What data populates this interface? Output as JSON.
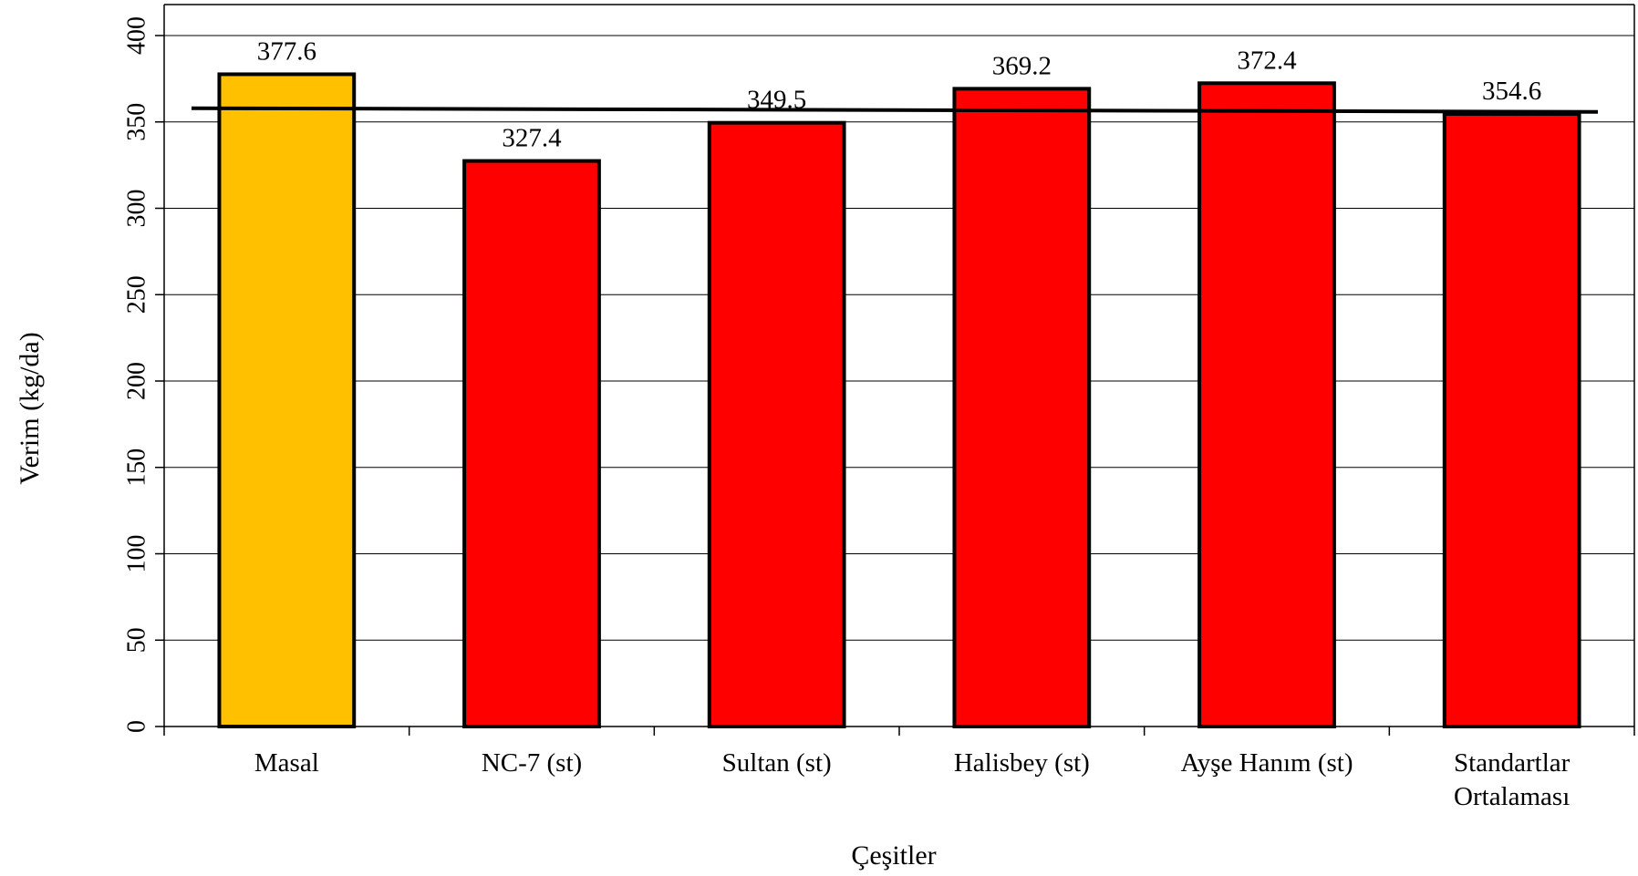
{
  "chart_data": {
    "type": "bar",
    "title": "",
    "xlabel": "Çeşitler",
    "ylabel": "Verim (kg/da)",
    "ylim": [
      0,
      400
    ],
    "yticks": [
      "0",
      "50",
      "100",
      "150",
      "200",
      "250",
      "300",
      "350",
      "400"
    ],
    "categories": [
      [
        "Masal"
      ],
      [
        "NC-7 (st)"
      ],
      [
        "Sultan (st)"
      ],
      [
        "Halisbey (st)"
      ],
      [
        "Ayşe Hanım (st)"
      ],
      [
        "Standartlar",
        "Ortalaması"
      ]
    ],
    "values": [
      377.6,
      327.4,
      349.5,
      369.2,
      372.4,
      354.6
    ],
    "data_labels": [
      "377.6",
      "327.4",
      "349.5",
      "369.2",
      "372.4",
      "354.6"
    ],
    "bar_colors": [
      "#FFC000",
      "#FF0000",
      "#FF0000",
      "#FF0000",
      "#FF0000",
      "#FF0000"
    ],
    "reference_line": {
      "value": 357.4
    },
    "grid": true,
    "legend": "none"
  }
}
